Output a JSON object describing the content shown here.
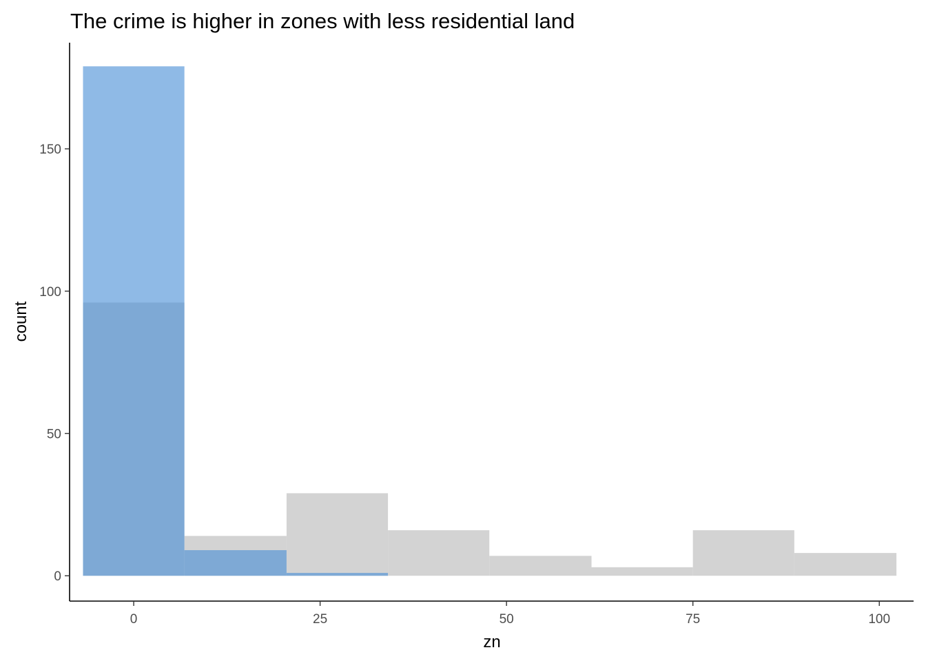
{
  "chart_data": {
    "type": "bar",
    "title": "The crime is higher in zones with less residential land",
    "xlabel": "zn",
    "ylabel": "count",
    "xlim": [
      -8.6,
      104.6
    ],
    "ylim": [
      -8.9,
      187.3
    ],
    "xticks": [
      0,
      25,
      50,
      75,
      100
    ],
    "xtick_labels": [
      "0",
      "25",
      "50",
      "75",
      "100"
    ],
    "yticks": [
      0,
      50,
      100,
      150
    ],
    "ytick_labels": [
      "0",
      "50",
      "100",
      "150"
    ],
    "bin_edges": [
      -6.8,
      6.8,
      20.5,
      34.1,
      47.7,
      61.4,
      75.0,
      88.6,
      102.3
    ],
    "series": [
      {
        "fill": "#d3d3d3",
        "values": [
          96,
          14,
          29,
          16,
          7,
          3,
          16,
          8
        ]
      },
      {
        "fill": "#4a8fd6",
        "opacity": 0.62,
        "values": [
          179,
          9,
          1,
          0,
          0,
          0,
          0,
          0
        ]
      }
    ],
    "grid": false,
    "legend": "none"
  }
}
